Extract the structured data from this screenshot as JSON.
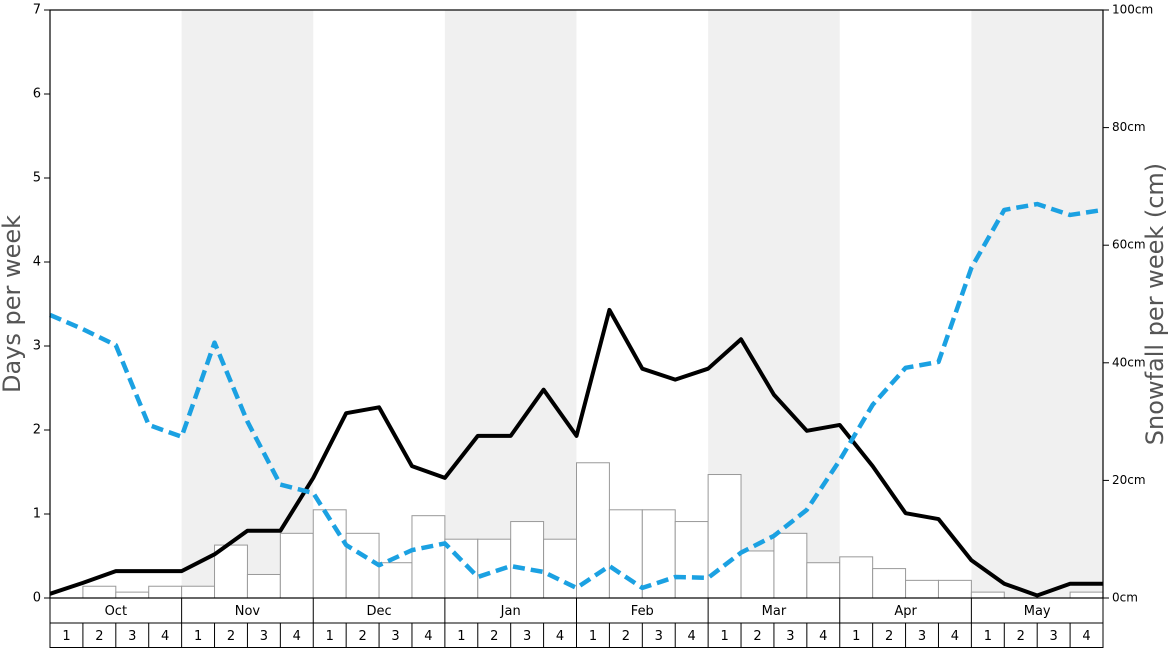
{
  "chart_data": {
    "type": "bar",
    "ylabel": "Days per week",
    "y2label": "Snowfall per week (cm)",
    "months": [
      "Oct",
      "Nov",
      "Dec",
      "Jan",
      "Feb",
      "Mar",
      "Apr",
      "May"
    ],
    "weeks": [
      1,
      2,
      3,
      4
    ],
    "ylim": [
      0,
      7
    ],
    "yticks": [
      0,
      1,
      2,
      3,
      4,
      5,
      6,
      7
    ],
    "y2lim": [
      0,
      100
    ],
    "y2ticks": [
      {
        "value": 0,
        "label": "0cm"
      },
      {
        "value": 20,
        "label": "20cm"
      },
      {
        "value": 40,
        "label": "40cm"
      },
      {
        "value": 60,
        "label": "60cm"
      },
      {
        "value": 80,
        "label": "80cm"
      },
      {
        "value": 100,
        "label": "100cm"
      }
    ],
    "series": [
      {
        "type": "bar",
        "axis": "y2",
        "color": "#ffffff",
        "edgecolor": "#999999",
        "values": [
          0,
          2,
          1,
          2,
          2,
          9,
          4,
          11,
          15,
          11,
          6,
          14,
          10,
          10,
          13,
          10,
          23,
          15,
          15,
          13,
          21,
          8,
          11,
          6,
          7,
          5,
          3,
          3,
          1,
          0,
          0,
          1
        ]
      },
      {
        "type": "line",
        "color": "#000000",
        "dashed": false,
        "values": [
          0.05,
          0.18,
          0.32,
          0.32,
          0.32,
          0.52,
          0.8,
          0.8,
          1.43,
          2.2,
          2.27,
          1.57,
          1.43,
          1.93,
          1.93,
          2.48,
          1.93,
          3.43,
          2.73,
          2.6,
          2.73,
          3.08,
          2.42,
          1.99,
          2.06,
          1.57,
          1.01,
          0.94,
          0.45,
          0.17,
          0.03,
          0.17,
          0.17
        ]
      },
      {
        "type": "line",
        "color": "#1ba1e2",
        "dashed": true,
        "values": [
          3.37,
          3.2,
          3.01,
          2.06,
          1.92,
          3.04,
          2.1,
          1.35,
          1.25,
          0.63,
          0.39,
          0.57,
          0.65,
          0.25,
          0.38,
          0.31,
          0.12,
          0.38,
          0.12,
          0.25,
          0.24,
          0.54,
          0.74,
          1.05,
          1.64,
          2.3,
          2.74,
          2.81,
          3.93,
          4.62,
          4.69,
          4.56,
          4.62
        ]
      }
    ]
  }
}
